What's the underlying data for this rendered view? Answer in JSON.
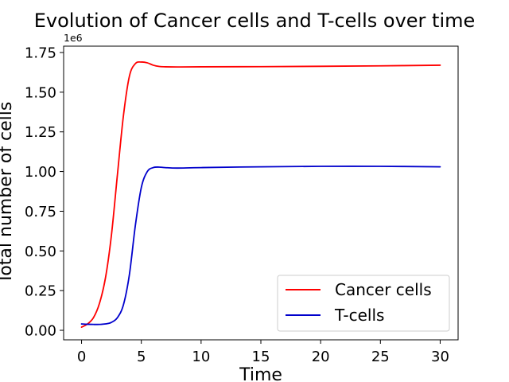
{
  "chart_data": {
    "type": "line",
    "title": "Evolution of Cancer cells and T-cells over time",
    "xlabel": "Time",
    "ylabel": "Total number of cells",
    "y_offset_label": "1e6",
    "xlim": [
      -1.5,
      31.5
    ],
    "ylim": [
      -0.06,
      1.79
    ],
    "x_ticks": [
      0,
      5,
      10,
      15,
      20,
      25,
      30
    ],
    "y_ticks": [
      0.0,
      0.25,
      0.5,
      0.75,
      1.0,
      1.25,
      1.5,
      1.75
    ],
    "x_tick_labels": [
      "0",
      "5",
      "10",
      "15",
      "20",
      "25",
      "30"
    ],
    "y_tick_labels": [
      "0.00",
      "0.25",
      "0.50",
      "0.75",
      "1.00",
      "1.25",
      "1.50",
      "1.75"
    ],
    "y_units_multiplier": 1000000,
    "grid": false,
    "legend_position": "lower-right",
    "series": [
      {
        "name": "Cancer cells",
        "color": "#ff0000",
        "x": [
          0,
          0.5,
          1,
          1.5,
          2,
          2.5,
          3,
          3.5,
          4,
          4.5,
          5,
          5.5,
          6,
          6.5,
          7,
          8,
          10,
          15,
          20,
          25,
          30
        ],
        "y": [
          0.02,
          0.04,
          0.08,
          0.17,
          0.33,
          0.6,
          0.98,
          1.35,
          1.6,
          1.68,
          1.69,
          1.685,
          1.67,
          1.662,
          1.66,
          1.659,
          1.66,
          1.661,
          1.663,
          1.666,
          1.67
        ]
      },
      {
        "name": "T-cells",
        "color": "#0000cc",
        "x": [
          0,
          0.5,
          1,
          1.5,
          2,
          2.5,
          3,
          3.5,
          4,
          4.5,
          5,
          5.5,
          6,
          6.5,
          7,
          8,
          10,
          15,
          20,
          25,
          30
        ],
        "y": [
          0.04,
          0.038,
          0.037,
          0.037,
          0.04,
          0.05,
          0.08,
          0.16,
          0.35,
          0.66,
          0.9,
          1.0,
          1.025,
          1.028,
          1.025,
          1.022,
          1.025,
          1.03,
          1.033,
          1.033,
          1.03
        ]
      }
    ]
  }
}
